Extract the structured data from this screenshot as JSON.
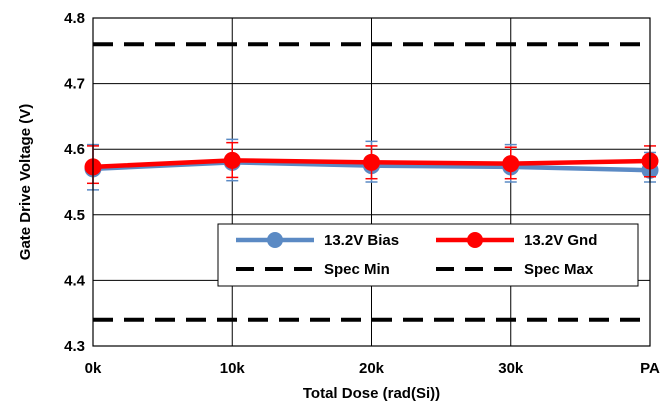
{
  "chart_data": {
    "type": "line",
    "title": "",
    "xlabel": "Total Dose (rad(Si))",
    "ylabel": "Gate Drive Voltage (V)",
    "categories": [
      "0k",
      "10k",
      "20k",
      "30k",
      "PA"
    ],
    "ylim": [
      4.3,
      4.8
    ],
    "yticks": [
      4.3,
      4.4,
      4.5,
      4.6,
      4.7,
      4.8
    ],
    "ytick_labels": [
      "4.3",
      "4.4",
      "4.5",
      "4.6",
      "4.7",
      "4.8"
    ],
    "grid": true,
    "legend_position": "lower-right",
    "series": [
      {
        "name": "13.2V Bias",
        "values": [
          4.57,
          4.58,
          4.575,
          4.573,
          4.568
        ],
        "error_low": [
          4.538,
          4.552,
          4.55,
          4.55,
          4.55
        ],
        "error_high": [
          4.607,
          4.615,
          4.612,
          4.607,
          4.595
        ],
        "color": "#5b8ac4",
        "style": "solid-marker"
      },
      {
        "name": "13.2V Gnd",
        "values": [
          4.573,
          4.583,
          4.58,
          4.578,
          4.582
        ],
        "error_low": [
          4.548,
          4.557,
          4.555,
          4.555,
          4.558
        ],
        "error_high": [
          4.605,
          4.61,
          4.605,
          4.603,
          4.605
        ],
        "color": "#ff0000",
        "style": "solid-marker"
      },
      {
        "name": "Spec Min",
        "values": [
          4.34,
          4.34,
          4.34,
          4.34,
          4.34
        ],
        "color": "#000000",
        "style": "dashed"
      },
      {
        "name": "Spec Max",
        "values": [
          4.76,
          4.76,
          4.76,
          4.76,
          4.76
        ],
        "color": "#000000",
        "style": "dashed"
      }
    ]
  }
}
